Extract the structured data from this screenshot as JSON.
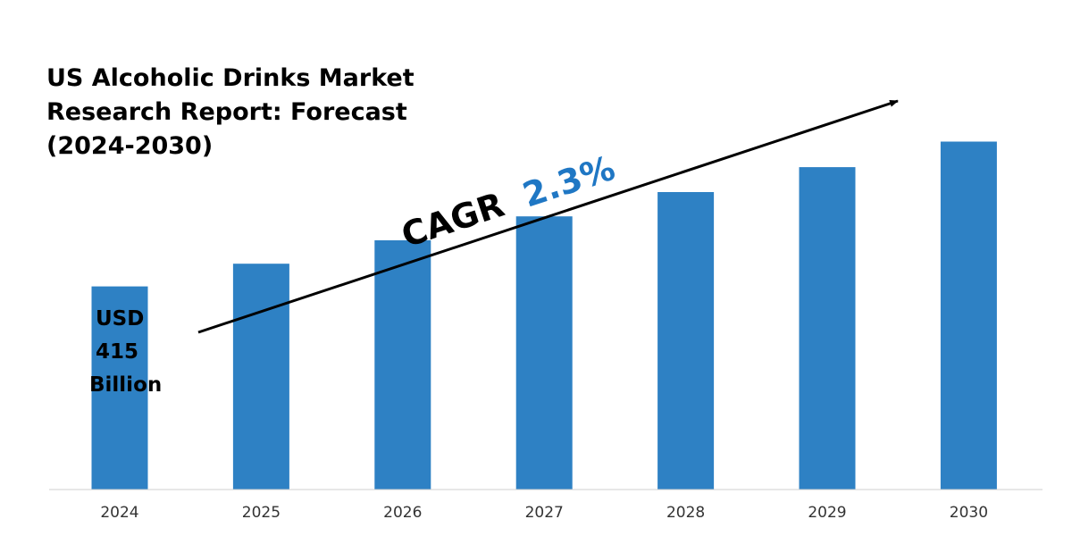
{
  "chart_data": {
    "type": "bar",
    "title_lines": [
      "US Alcoholic Drinks Market",
      "Research Report: Forecast",
      "(2024-2030)"
    ],
    "categories": [
      "2024",
      "2025",
      "2026",
      "2027",
      "2028",
      "2029",
      "2030"
    ],
    "values": [
      415,
      424.5,
      434.3,
      444.3,
      454.5,
      464.9,
      475.6
    ],
    "ylim": [
      330,
      490
    ],
    "grid": false,
    "bar_color": "#2E81C4",
    "annotation": {
      "label_lines": [
        "USD",
        "415",
        "Billion"
      ],
      "cagr_prefix": "CAGR",
      "cagr_value": "2.3%",
      "cagr_value_color": "#1F77C4",
      "arrow_color": "#000000"
    }
  }
}
